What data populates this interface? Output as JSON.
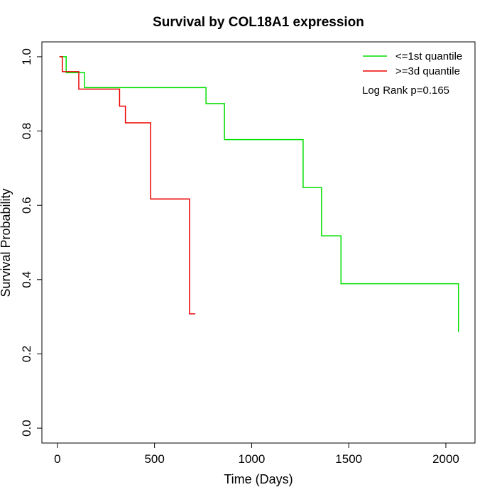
{
  "chart_data": {
    "type": "line",
    "subtype": "kaplan-meier step",
    "title": "Survival by COL18A1 expression",
    "xlabel": "Time (Days)",
    "ylabel": "Survival Probability",
    "xlim": [
      -80,
      2150
    ],
    "ylim": [
      -0.04,
      1.04
    ],
    "x_ticks": [
      0,
      500,
      1000,
      1500,
      2000
    ],
    "x_tick_labels": [
      "0",
      "500",
      "1000",
      "1500",
      "2000"
    ],
    "y_ticks": [
      0.0,
      0.2,
      0.4,
      0.6,
      0.8,
      1.0
    ],
    "y_tick_labels": [
      "0.0",
      "0.2",
      "0.4",
      "0.6",
      "0.8",
      "1.0"
    ],
    "grid": false,
    "legend_position": "top-right",
    "annotation": "Log Rank p=0.165",
    "series": [
      {
        "name": "<=1st quantile",
        "color": "#00e000",
        "x": [
          10,
          45,
          140,
          765,
          860,
          1265,
          1360,
          1460,
          2065
        ],
        "y": [
          1.0,
          0.957,
          0.917,
          0.874,
          0.777,
          0.648,
          0.518,
          0.389,
          0.259
        ]
      },
      {
        "name": ">=3d quantile",
        "color": "#ee0000",
        "x": [
          10,
          25,
          110,
          320,
          350,
          480,
          680,
          710
        ],
        "y": [
          1.0,
          0.96,
          0.913,
          0.867,
          0.822,
          0.617,
          0.308,
          0.308
        ]
      }
    ]
  }
}
